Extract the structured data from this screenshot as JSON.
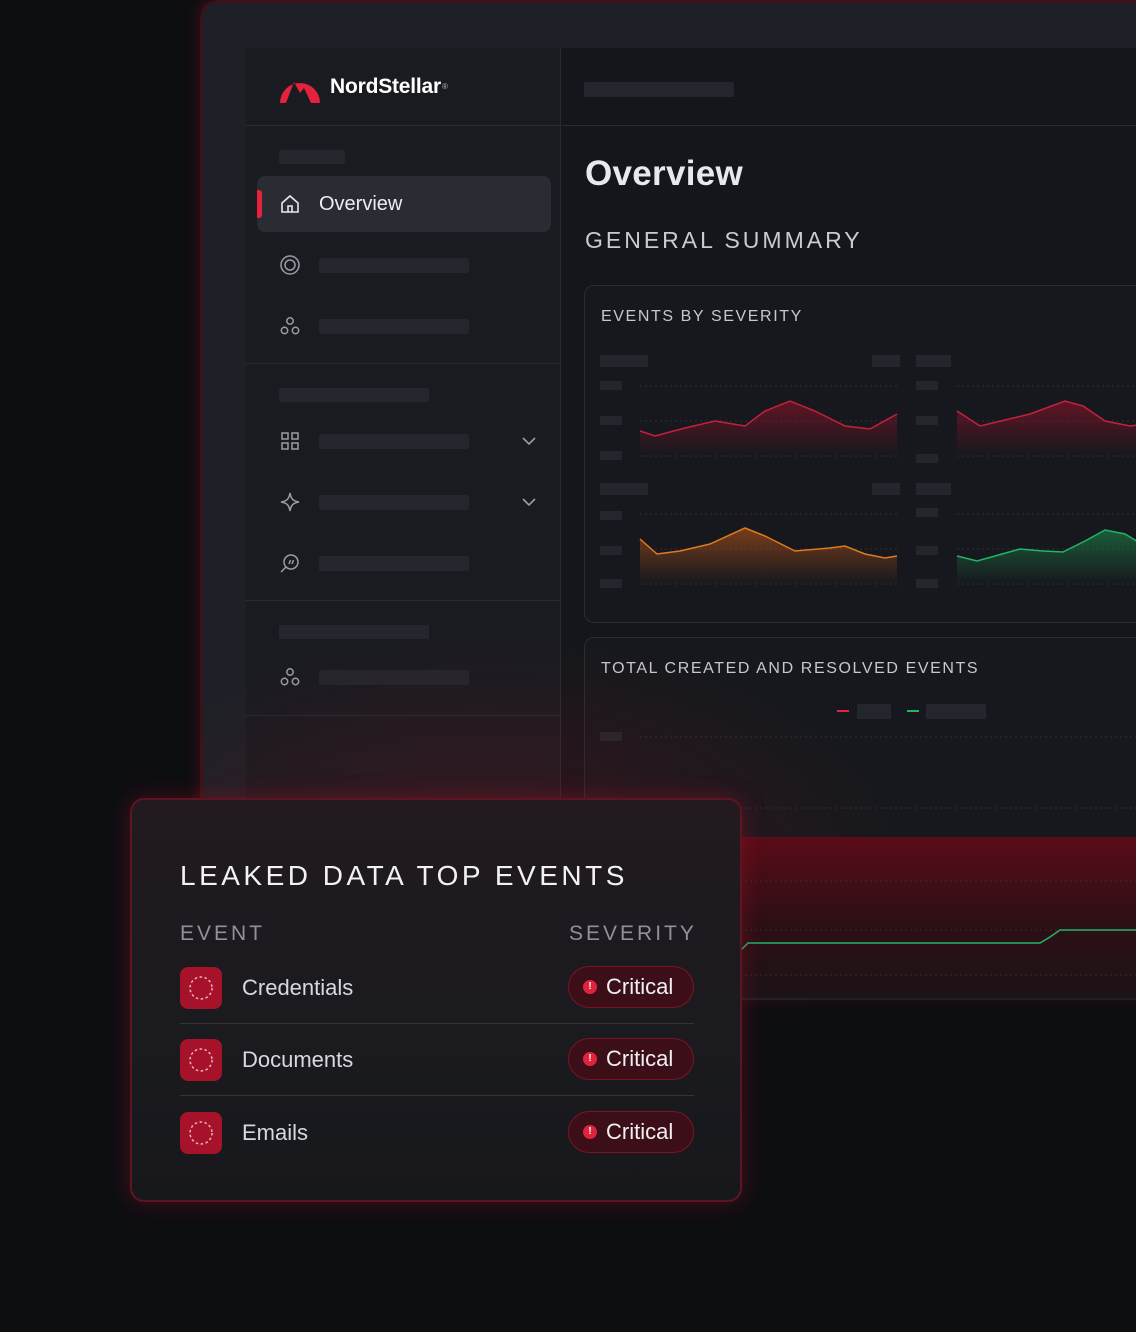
{
  "app": {
    "brand": "NordStellar",
    "brand_mark": "®"
  },
  "sidebar": {
    "active_item": {
      "label": "Overview",
      "icon": "home-icon"
    },
    "icons": [
      "home-icon",
      "target-icon",
      "group-icon",
      "grid-icon",
      "sparkle-icon",
      "search-chat-icon",
      "group-icon"
    ]
  },
  "main": {
    "title": "Overview",
    "section": "GENERAL SUMMARY",
    "card_severity": {
      "title": "EVENTS BY SEVERITY"
    },
    "card_totals": {
      "title": "TOTAL CREATED AND RESOLVED EVENTS"
    }
  },
  "panel": {
    "title": "LEAKED DATA TOP EVENTS",
    "col_event": "EVENT",
    "col_severity": "SEVERITY",
    "rows": [
      {
        "event": "Credentials",
        "severity": "Critical"
      },
      {
        "event": "Documents",
        "severity": "Critical"
      },
      {
        "event": "Emails",
        "severity": "Critical"
      }
    ]
  },
  "colors": {
    "accent": "#e4223c",
    "critical": "#a5122a",
    "series_red": "#c4213d",
    "series_orange": "#e07a22",
    "series_green": "#22b564"
  }
}
